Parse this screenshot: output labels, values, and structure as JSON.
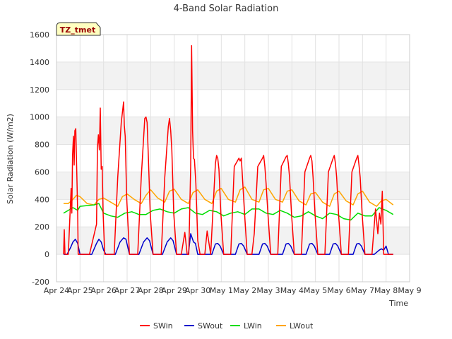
{
  "chart_data": {
    "type": "line",
    "title": "4-Band Solar Radiation",
    "tag": "TZ_tmet",
    "xlabel": "Time",
    "ylabel": "Solar Radiation (W/m2)",
    "xlim": [
      0,
      15
    ],
    "ylim": [
      -200,
      1600
    ],
    "yticks": [
      -200,
      0,
      200,
      400,
      600,
      800,
      1000,
      1200,
      1400,
      1600
    ],
    "xticks": [
      0,
      1,
      2,
      3,
      4,
      5,
      6,
      7,
      8,
      9,
      10,
      11,
      12,
      13,
      14,
      15
    ],
    "xtick_labels": [
      "Apr 24",
      "Apr 25",
      "Apr 26",
      "Apr 27",
      "Apr 28",
      "Apr 29",
      "Apr 30",
      "May 1",
      "May 2",
      "May 3",
      "May 4",
      "May 5",
      "May 6",
      "May 7",
      "May 8",
      "May 9"
    ],
    "grid": true,
    "legend_position": "bottom-center",
    "series": [
      {
        "name": "SWin",
        "color": "#ff0000",
        "x": [
          0.3,
          0.33,
          0.36,
          0.5,
          0.62,
          0.65,
          0.68,
          0.72,
          0.75,
          0.78,
          0.82,
          0.86,
          0.9,
          0.92,
          1.05,
          1.4,
          1.7,
          1.74,
          1.78,
          1.82,
          1.86,
          1.9,
          1.94,
          1.98,
          2.05,
          2.45,
          2.6,
          2.75,
          2.85,
          2.88,
          2.92,
          2.98,
          3.1,
          3.45,
          3.6,
          3.75,
          3.8,
          3.85,
          3.9,
          3.98,
          4.1,
          4.45,
          4.6,
          4.75,
          4.8,
          4.85,
          4.9,
          4.98,
          5.1,
          5.3,
          5.45,
          5.55,
          5.62,
          5.7,
          5.74,
          5.78,
          5.82,
          5.86,
          5.92,
          6.0,
          6.1,
          6.3,
          6.4,
          6.55,
          6.75,
          6.8,
          6.85,
          6.9,
          6.98,
          7.1,
          7.4,
          7.55,
          7.75,
          7.8,
          7.85,
          7.9,
          7.98,
          8.1,
          8.3,
          8.4,
          8.55,
          8.75,
          8.8,
          8.85,
          8.9,
          8.98,
          9.1,
          9.4,
          9.55,
          9.75,
          9.8,
          9.85,
          9.9,
          9.98,
          10.1,
          10.4,
          10.55,
          10.75,
          10.8,
          10.85,
          10.9,
          10.98,
          11.1,
          11.4,
          11.55,
          11.75,
          11.8,
          11.85,
          11.9,
          11.98,
          12.1,
          12.4,
          12.55,
          12.75,
          12.8,
          12.85,
          12.9,
          12.98,
          13.1,
          13.4,
          13.55,
          13.65,
          13.72,
          13.78,
          13.84,
          13.9,
          14.0,
          14.3
        ],
        "y": [
          0,
          180,
          0,
          0,
          480,
          300,
          720,
          860,
          650,
          900,
          915,
          600,
          300,
          0,
          0,
          0,
          220,
          780,
          870,
          760,
          1065,
          620,
          640,
          300,
          0,
          0,
          560,
          960,
          1110,
          940,
          860,
          420,
          0,
          0,
          560,
          990,
          1000,
          960,
          720,
          300,
          0,
          0,
          560,
          930,
          990,
          900,
          760,
          300,
          0,
          0,
          160,
          0,
          0,
          640,
          1520,
          900,
          700,
          690,
          520,
          100,
          0,
          0,
          170,
          0,
          660,
          720,
          700,
          620,
          300,
          0,
          0,
          640,
          700,
          680,
          700,
          560,
          320,
          0,
          0,
          150,
          640,
          700,
          720,
          640,
          520,
          300,
          0,
          0,
          640,
          710,
          720,
          660,
          560,
          300,
          0,
          0,
          600,
          700,
          720,
          680,
          560,
          300,
          0,
          0,
          600,
          700,
          720,
          660,
          560,
          300,
          0,
          0,
          600,
          700,
          720,
          650,
          560,
          300,
          0,
          0,
          330,
          150,
          300,
          220,
          460,
          0,
          0,
          0
        ]
      },
      {
        "name": "SWout",
        "color": "#0000cc",
        "x": [
          0.3,
          0.45,
          0.6,
          0.7,
          0.8,
          0.9,
          1.0,
          1.5,
          1.7,
          1.8,
          1.9,
          2.0,
          2.1,
          2.5,
          2.7,
          2.85,
          2.95,
          3.1,
          3.5,
          3.7,
          3.85,
          3.95,
          4.1,
          4.5,
          4.7,
          4.85,
          4.95,
          5.1,
          5.6,
          5.7,
          5.76,
          5.82,
          5.9,
          6.0,
          6.1,
          6.6,
          6.75,
          6.85,
          6.95,
          7.1,
          7.6,
          7.75,
          7.85,
          7.95,
          8.1,
          8.6,
          8.75,
          8.85,
          8.95,
          9.1,
          9.6,
          9.75,
          9.85,
          9.95,
          10.1,
          10.6,
          10.75,
          10.85,
          10.95,
          11.1,
          11.6,
          11.75,
          11.85,
          11.95,
          12.1,
          12.6,
          12.75,
          12.85,
          12.95,
          13.1,
          13.5,
          13.7,
          13.8,
          13.9,
          14.0,
          14.1,
          14.3
        ],
        "y": [
          0,
          0,
          50,
          90,
          110,
          80,
          0,
          0,
          80,
          110,
          90,
          30,
          0,
          0,
          90,
          120,
          110,
          0,
          0,
          90,
          120,
          100,
          0,
          0,
          90,
          120,
          100,
          0,
          0,
          150,
          120,
          90,
          80,
          0,
          0,
          0,
          75,
          80,
          60,
          0,
          0,
          75,
          80,
          60,
          0,
          0,
          75,
          80,
          60,
          0,
          0,
          75,
          80,
          60,
          0,
          0,
          75,
          80,
          60,
          0,
          0,
          75,
          80,
          60,
          0,
          0,
          75,
          80,
          60,
          0,
          0,
          30,
          40,
          30,
          60,
          0,
          0
        ]
      },
      {
        "name": "LWin",
        "color": "#00dd00",
        "x": [
          0.3,
          0.5,
          0.7,
          0.9,
          1.0,
          1.3,
          1.6,
          1.8,
          2.0,
          2.3,
          2.6,
          2.9,
          3.2,
          3.5,
          3.8,
          4.1,
          4.4,
          4.7,
          5.0,
          5.3,
          5.6,
          5.9,
          6.2,
          6.5,
          6.8,
          7.1,
          7.4,
          7.7,
          8.0,
          8.3,
          8.6,
          8.9,
          9.2,
          9.5,
          9.8,
          10.1,
          10.4,
          10.7,
          11.0,
          11.3,
          11.6,
          11.9,
          12.2,
          12.5,
          12.8,
          13.1,
          13.4,
          13.7,
          14.0,
          14.3
        ],
        "y": [
          300,
          320,
          340,
          320,
          350,
          355,
          360,
          370,
          300,
          280,
          270,
          300,
          310,
          290,
          290,
          320,
          330,
          310,
          300,
          330,
          340,
          300,
          290,
          320,
          310,
          280,
          300,
          310,
          290,
          330,
          330,
          300,
          290,
          320,
          300,
          270,
          280,
          310,
          280,
          260,
          300,
          290,
          260,
          250,
          300,
          280,
          280,
          340,
          320,
          290
        ]
      },
      {
        "name": "LWout",
        "color": "#ffa500",
        "x": [
          0.3,
          0.5,
          0.7,
          0.85,
          1.0,
          1.3,
          1.6,
          1.8,
          2.0,
          2.3,
          2.6,
          2.8,
          3.0,
          3.3,
          3.6,
          3.8,
          4.0,
          4.3,
          4.6,
          4.8,
          5.0,
          5.3,
          5.6,
          5.8,
          6.0,
          6.3,
          6.6,
          6.8,
          7.0,
          7.3,
          7.6,
          7.8,
          8.0,
          8.3,
          8.6,
          8.8,
          9.0,
          9.3,
          9.6,
          9.8,
          10.0,
          10.3,
          10.6,
          10.8,
          11.0,
          11.3,
          11.6,
          11.8,
          12.0,
          12.3,
          12.6,
          12.8,
          13.0,
          13.3,
          13.6,
          13.8,
          14.0,
          14.3
        ],
        "y": [
          370,
          370,
          400,
          430,
          420,
          370,
          360,
          400,
          410,
          380,
          350,
          420,
          440,
          400,
          370,
          430,
          470,
          410,
          380,
          460,
          475,
          400,
          370,
          450,
          470,
          400,
          370,
          460,
          480,
          400,
          380,
          470,
          490,
          400,
          380,
          470,
          480,
          400,
          380,
          460,
          470,
          390,
          360,
          440,
          450,
          380,
          350,
          440,
          460,
          390,
          360,
          440,
          460,
          380,
          350,
          390,
          400,
          360
        ]
      }
    ]
  }
}
